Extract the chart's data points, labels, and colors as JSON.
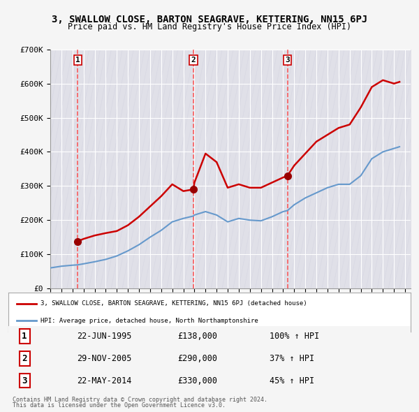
{
  "title": "3, SWALLOW CLOSE, BARTON SEAGRAVE, KETTERING, NN15 6PJ",
  "subtitle": "Price paid vs. HM Land Registry's House Price Index (HPI)",
  "legend_label_red": "3, SWALLOW CLOSE, BARTON SEAGRAVE, KETTERING, NN15 6PJ (detached house)",
  "legend_label_blue": "HPI: Average price, detached house, North Northamptonshire",
  "sales": [
    {
      "index": 1,
      "date_num": 1995.47,
      "price": 138000,
      "date_str": "22-JUN-1995",
      "pct": "100% ↑ HPI"
    },
    {
      "index": 2,
      "date_num": 2005.91,
      "price": 290000,
      "date_str": "29-NOV-2005",
      "pct": "37% ↑ HPI"
    },
    {
      "index": 3,
      "date_num": 2014.39,
      "price": 330000,
      "date_str": "22-MAY-2014",
      "pct": "45% ↑ HPI"
    }
  ],
  "footer1": "Contains HM Land Registry data © Crown copyright and database right 2024.",
  "footer2": "This data is licensed under the Open Government Licence v3.0.",
  "xlim": [
    1993,
    2025.5
  ],
  "ylim": [
    0,
    700000
  ],
  "yticks": [
    0,
    100000,
    200000,
    300000,
    400000,
    500000,
    600000,
    700000
  ],
  "ytick_labels": [
    "£0",
    "£100K",
    "£200K",
    "£300K",
    "£400K",
    "£500K",
    "£600K",
    "£700K"
  ],
  "xticks": [
    1993,
    1994,
    1995,
    1996,
    1997,
    1998,
    1999,
    2000,
    2001,
    2002,
    2003,
    2004,
    2005,
    2006,
    2007,
    2008,
    2009,
    2010,
    2011,
    2012,
    2013,
    2014,
    2015,
    2016,
    2017,
    2018,
    2019,
    2020,
    2021,
    2022,
    2023,
    2024,
    2025
  ],
  "red_line_x": [
    1995.47,
    1996.0,
    1997.0,
    1998.0,
    1999.0,
    2000.0,
    2001.0,
    2002.0,
    2003.0,
    2004.0,
    2005.0,
    2005.91,
    2006.0,
    2007.0,
    2008.0,
    2009.0,
    2010.0,
    2011.0,
    2012.0,
    2013.0,
    2014.0,
    2014.39,
    2015.0,
    2016.0,
    2017.0,
    2018.0,
    2019.0,
    2020.0,
    2021.0,
    2022.0,
    2023.0,
    2024.0,
    2024.5
  ],
  "red_line_y": [
    138000,
    145000,
    155000,
    162000,
    168000,
    185000,
    210000,
    240000,
    270000,
    305000,
    285000,
    290000,
    310000,
    395000,
    370000,
    295000,
    305000,
    295000,
    295000,
    310000,
    325000,
    330000,
    360000,
    395000,
    430000,
    450000,
    470000,
    480000,
    530000,
    590000,
    610000,
    600000,
    605000
  ],
  "blue_line_x": [
    1993.0,
    1994.0,
    1995.0,
    1995.47,
    1996.0,
    1997.0,
    1998.0,
    1999.0,
    2000.0,
    2001.0,
    2002.0,
    2003.0,
    2004.0,
    2005.0,
    2005.91,
    2006.0,
    2007.0,
    2008.0,
    2009.0,
    2010.0,
    2011.0,
    2012.0,
    2013.0,
    2014.0,
    2014.39,
    2015.0,
    2016.0,
    2017.0,
    2018.0,
    2019.0,
    2020.0,
    2021.0,
    2022.0,
    2023.0,
    2024.0,
    2024.5
  ],
  "blue_line_y": [
    60000,
    65000,
    68000,
    69000,
    72000,
    78000,
    85000,
    95000,
    110000,
    128000,
    150000,
    170000,
    195000,
    205000,
    212000,
    215000,
    225000,
    215000,
    195000,
    205000,
    200000,
    198000,
    210000,
    225000,
    228000,
    245000,
    265000,
    280000,
    295000,
    305000,
    305000,
    330000,
    380000,
    400000,
    410000,
    415000
  ],
  "bg_color": "#f0f0f0",
  "plot_bg_color": "#e8e8e8",
  "hatch_color": "#cccccc",
  "red_color": "#cc0000",
  "blue_color": "#6699cc",
  "vline_color": "#ff4444",
  "marker_color": "#990000"
}
